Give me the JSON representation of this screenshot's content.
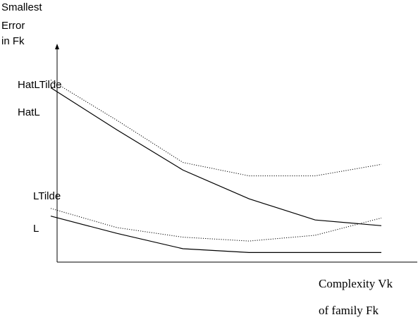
{
  "chart_data": {
    "type": "line",
    "title": "",
    "ylabel_lines": [
      "Smallest",
      "Error",
      "in  Fk"
    ],
    "xlabel_lines": [
      "Complexity Vk",
      "of family Fk"
    ],
    "x": [
      0,
      1,
      2,
      3,
      4,
      5
    ],
    "xlim": [
      0,
      5.2
    ],
    "ylim": [
      0,
      10
    ],
    "grid": false,
    "legend": "none",
    "series": [
      {
        "name": "HatLTilde",
        "style": "dotted",
        "x": [
          0,
          1,
          2,
          3,
          4,
          5
        ],
        "values": [
          9.5,
          7.4,
          5.2,
          4.5,
          4.5,
          5.1
        ]
      },
      {
        "name": "HatL",
        "style": "solid",
        "x": [
          0,
          1,
          2,
          3,
          4,
          5
        ],
        "values": [
          9.1,
          6.9,
          4.8,
          3.3,
          2.2,
          1.9
        ]
      },
      {
        "name": "LTilde",
        "style": "dotted",
        "x": [
          0,
          1,
          2,
          3,
          4,
          5
        ],
        "values": [
          2.8,
          1.8,
          1.3,
          1.1,
          1.4,
          2.3
        ]
      },
      {
        "name": "L",
        "style": "solid",
        "x": [
          0,
          1,
          2,
          3,
          4,
          5
        ],
        "values": [
          2.4,
          1.5,
          0.7,
          0.5,
          0.5,
          0.5
        ]
      }
    ]
  }
}
